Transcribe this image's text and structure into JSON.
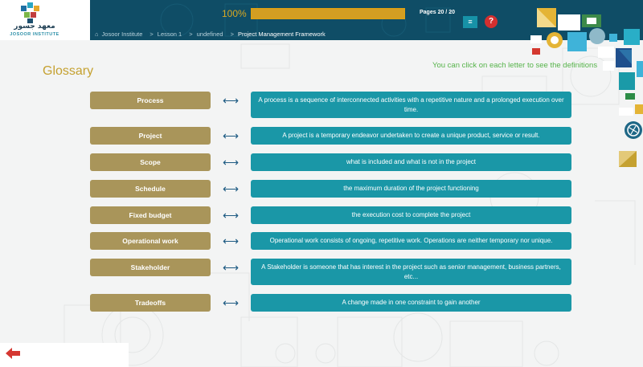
{
  "logo": {
    "arabic": "معهد جسور",
    "english": "JOSOOR INSTITUTE"
  },
  "progress": {
    "label": "100%",
    "value": 1.0
  },
  "pages": "Pages 20 / 20",
  "buttons": {
    "menu": "≡",
    "help": "?"
  },
  "breadcrumb": {
    "items": [
      "Josoor Institute",
      "Lesson 1",
      "undefined",
      "Project Management Framework"
    ],
    "separator": ">"
  },
  "page_title": "Glossary",
  "instruction": "You can click on each letter to see the definitions",
  "arrow_glyph": "⟷",
  "glossary": [
    {
      "term": "Process",
      "definition": "A process is a sequence of interconnected activities with a repetitive nature and a prolonged execution over time."
    },
    {
      "term": "Project",
      "definition": "A project is a temporary endeavor undertaken to create a unique product, service or result."
    },
    {
      "term": "Scope",
      "definition": "what is included and what is not in the project"
    },
    {
      "term": "Schedule",
      "definition": "the maximum duration of the project functioning"
    },
    {
      "term": "Fixed budget",
      "definition": "the execution cost to complete the project"
    },
    {
      "term": "Operational work",
      "definition": "Operational work consists of ongoing, repetitive work. Operations are neither temporary nor unique."
    },
    {
      "term": "Stakeholder",
      "definition": "A Stakeholder is someone that has interest in the project such as senior management, business partners, etc..."
    },
    {
      "term": "Tradeoffs",
      "definition": "A change made in one constraint to gain another"
    }
  ],
  "colors": {
    "header": "#0f4d66",
    "accent_gold": "#c5a130",
    "term_button": "#a9955a",
    "definition_box": "#1a97a7",
    "instruction": "#56b34a",
    "back_arrow": "#d53731"
  },
  "icons": [
    "home-icon",
    "menu-icon",
    "help-icon",
    "double-arrow-icon",
    "back-arrow-icon",
    "globe-icon"
  ]
}
